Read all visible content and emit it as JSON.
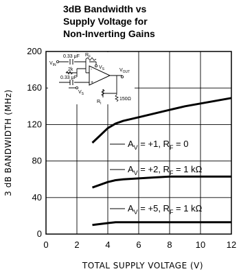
{
  "chart_data": {
    "type": "line",
    "title_lines": [
      "3dB Bandwidth vs",
      "Supply Voltage for",
      "Non-Inverting Gains"
    ],
    "xlabel": "TOTAL SUPPLY VOLTAGE (V)",
    "ylabel": "3 dB BANDWIDTH (MHz)",
    "xlim": [
      0,
      12
    ],
    "ylim": [
      0,
      200
    ],
    "xticks": [
      0,
      2,
      4,
      6,
      8,
      10,
      12
    ],
    "yticks": [
      0,
      40,
      80,
      120,
      160,
      200
    ],
    "grid": true,
    "series": [
      {
        "label_parts": [
          "A",
          "V",
          " = +1, R",
          "F",
          " = 0"
        ],
        "x": [
          3,
          3.5,
          4,
          4.5,
          5,
          6,
          7,
          8,
          9,
          10,
          11,
          12
        ],
        "y": [
          100,
          108,
          116,
          121,
          124,
          128,
          132,
          136,
          140,
          143,
          146,
          149
        ]
      },
      {
        "label_parts": [
          "A",
          "V",
          " = +2, R",
          "F",
          " = 1 kΩ"
        ],
        "x": [
          3,
          3.5,
          4,
          4.5,
          5,
          6,
          7,
          8,
          10,
          12
        ],
        "y": [
          51,
          54,
          57,
          59,
          60,
          61,
          62,
          63,
          63,
          63
        ]
      },
      {
        "label_parts": [
          "A",
          "V",
          " = +5, R",
          "F",
          " = 1 kΩ"
        ],
        "x": [
          3,
          3.5,
          4,
          4.5,
          5,
          6,
          8,
          10,
          12
        ],
        "y": [
          10,
          11,
          12,
          13,
          13,
          13,
          13,
          13,
          13
        ]
      }
    ],
    "inset_schematic": {
      "labels": [
        "0.33 μF",
        "R",
        "F",
        "V",
        "S",
        "V",
        "IN",
        "2k",
        "0.33 μF",
        "V",
        "S",
        "V",
        "OUT",
        "R",
        "I",
        "150Ω",
        "-",
        "+"
      ]
    }
  }
}
